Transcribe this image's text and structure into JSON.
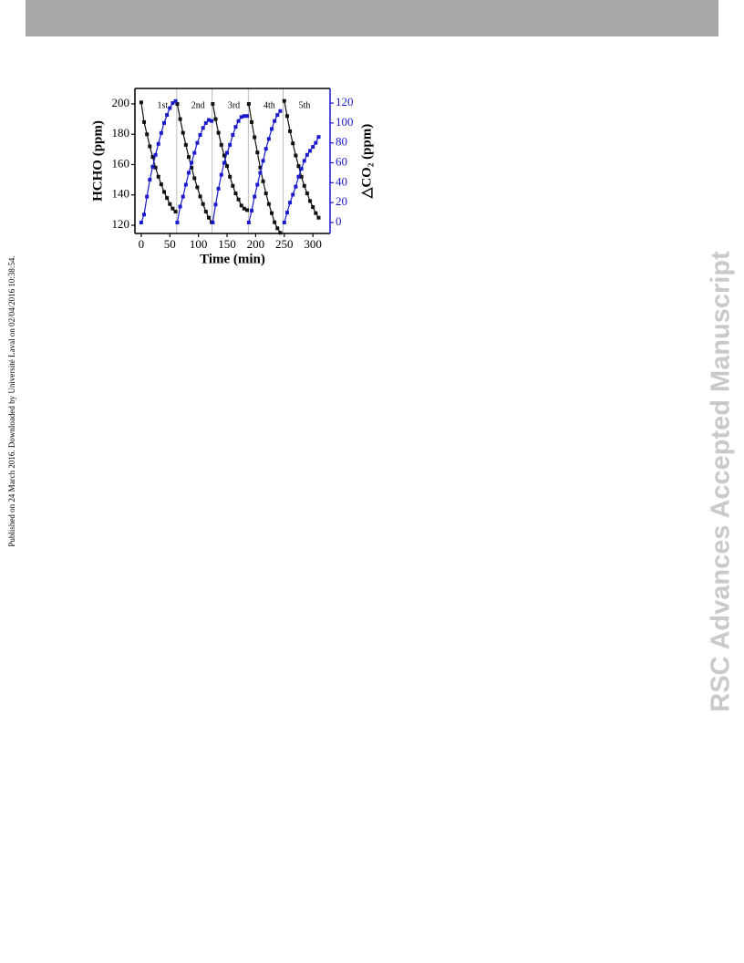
{
  "side_note": "Published on 24 March 2016. Downloaded by Université Laval on 02/04/2016 10:38:54.",
  "watermark": "RSC Advances Accepted Manuscript",
  "chart_data": {
    "type": "line",
    "xlabel": "Time (min)",
    "ylabel": "HCHO (ppm)",
    "y2label": "△CO₂ (ppm)",
    "annotations": [
      "1st",
      "2nd",
      "3rd",
      "4th",
      "5th"
    ],
    "x": [
      0,
      5,
      10,
      15,
      20,
      25,
      30,
      35,
      40,
      45,
      50,
      55,
      60,
      62,
      63,
      68,
      73,
      78,
      83,
      88,
      93,
      98,
      103,
      108,
      113,
      118,
      123,
      124,
      125,
      130,
      135,
      140,
      145,
      150,
      155,
      160,
      165,
      170,
      175,
      180,
      185,
      187,
      188,
      193,
      198,
      203,
      208,
      213,
      218,
      223,
      228,
      233,
      238,
      243,
      248,
      250,
      255,
      260,
      265,
      270,
      275,
      280,
      285,
      290,
      295,
      300,
      305,
      310
    ],
    "series": [
      {
        "color": "#111111",
        "values": [
          201,
          188,
          180,
          172,
          165,
          158,
          152,
          147,
          142,
          138,
          134,
          131,
          129,
          null,
          200,
          190,
          181,
          173,
          165,
          158,
          151,
          145,
          139,
          134,
          129,
          125,
          122,
          null,
          200,
          190,
          181,
          173,
          166,
          159,
          152,
          146,
          141,
          137,
          133,
          131,
          130,
          null,
          200,
          188,
          178,
          168,
          158,
          149,
          141,
          134,
          128,
          122,
          118,
          115,
          null,
          202,
          192,
          182,
          174,
          166,
          159,
          152,
          146,
          141,
          136,
          132,
          128,
          125
        ]
      },
      {
        "color": "#1a1acc",
        "axis": "y2",
        "values": [
          0,
          8,
          26,
          43,
          56,
          68,
          79,
          90,
          100,
          108,
          115,
          120,
          122,
          null,
          0,
          16,
          26,
          38,
          50,
          60,
          70,
          80,
          88,
          95,
          100,
          103,
          102,
          null,
          0,
          18,
          34,
          48,
          60,
          70,
          78,
          88,
          96,
          102,
          106,
          107,
          107,
          null,
          0,
          12,
          26,
          38,
          50,
          62,
          74,
          84,
          94,
          102,
          108,
          112,
          null,
          0,
          10,
          20,
          28,
          36,
          46,
          54,
          62,
          68,
          72,
          76,
          80,
          86
        ]
      }
    ],
    "xlim": [
      -11,
      330
    ],
    "xticks": [
      0,
      50,
      100,
      150,
      200,
      250,
      300
    ],
    "ylim": [
      114.6,
      210.2
    ],
    "yticks": [
      120,
      140,
      160,
      180,
      200
    ],
    "y2lim": [
      -11,
      134.7
    ],
    "y2ticks": [
      0,
      20,
      40,
      60,
      80,
      100,
      120
    ],
    "y2color": "#1a1acc"
  }
}
